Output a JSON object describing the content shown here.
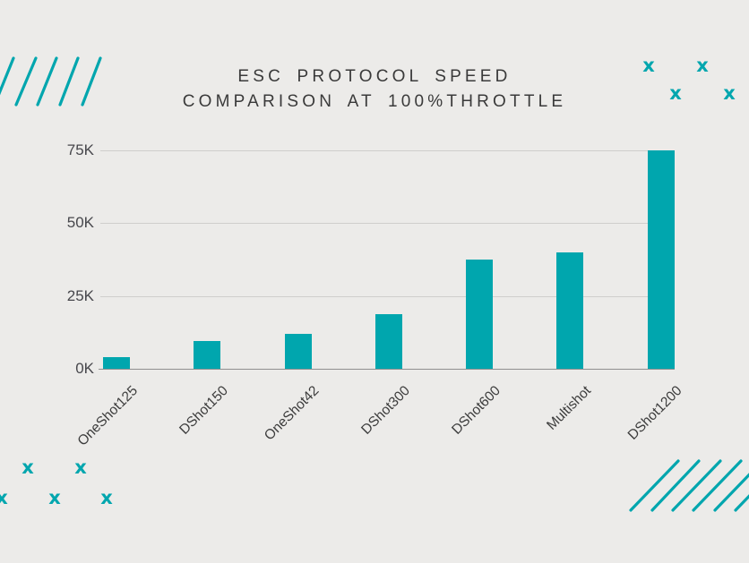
{
  "title": {
    "line1": "ESC PROTOCOL SPEED",
    "line2": "COMPARISON AT 100%THROTTLE"
  },
  "chart_data": {
    "type": "bar",
    "title": "ESC PROTOCOL SPEED COMPARISON AT 100%THROTTLE",
    "categories": [
      "OneShot125",
      "DShot150",
      "OneShot42",
      "DShot300",
      "DShot600",
      "Multishot",
      "DShot1200"
    ],
    "values_k": [
      4,
      9.4,
      12,
      18.8,
      37.5,
      40,
      75
    ],
    "value_unit": "K (thousands, speed at 100% throttle)",
    "xlabel": "",
    "ylabel": "",
    "yticks": [
      {
        "label": "0K",
        "value": 0
      },
      {
        "label": "25K",
        "value": 25
      },
      {
        "label": "50K",
        "value": 50
      },
      {
        "label": "75K",
        "value": 75
      }
    ],
    "ylim_k": [
      0,
      80
    ],
    "grid": "horizontal gridlines at 25K, 50K, 75K",
    "legend": "none",
    "bar_color": "#00A6AE"
  },
  "decorations": {
    "x_mark_glyph": "x",
    "top_right_x_marks": 4,
    "bottom_left_x_marks": 5,
    "top_left_diagonal_lines": 5,
    "bottom_right_diagonal_lines": 6
  },
  "colors": {
    "background": "#ECEBE9",
    "accent_teal": "#00A6AE",
    "title_text": "#3A3A3A",
    "tick_text": "#47474C",
    "gridline": "#CFCECC",
    "axis_line": "#8F8F8F"
  }
}
